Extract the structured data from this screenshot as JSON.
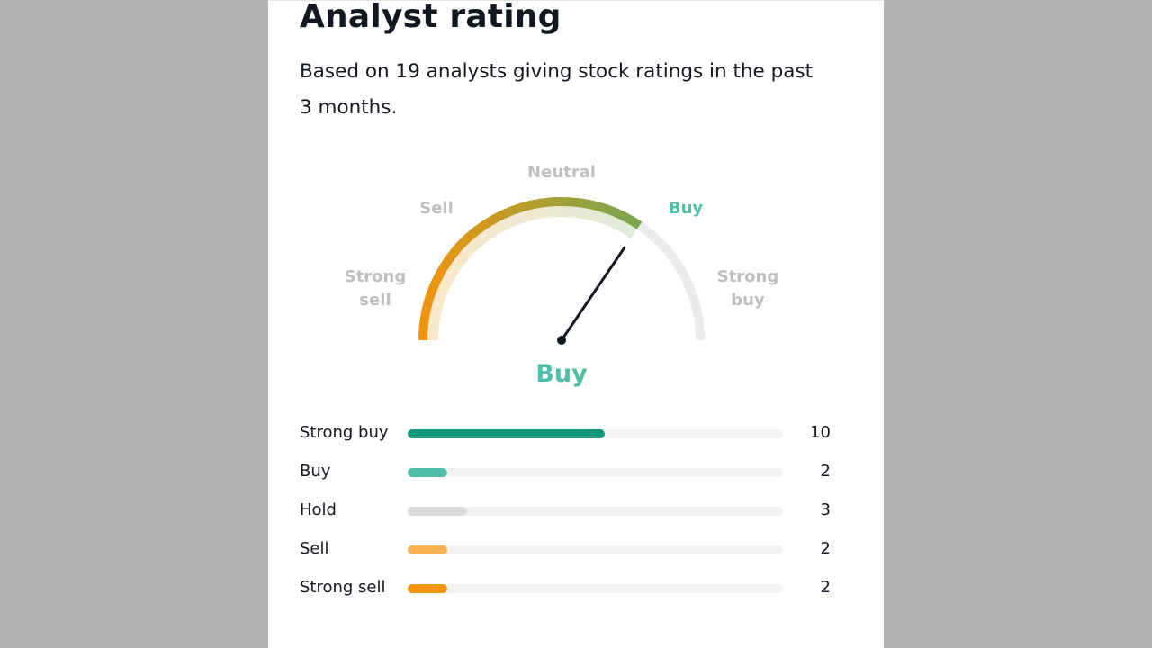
{
  "widget": {
    "title": "Analyst rating",
    "subtitle": "Based on 19 analysts giving stock ratings in the past 3 months."
  },
  "gauge": {
    "labels": {
      "strong_sell_line1": "Strong",
      "strong_sell_line2": "sell",
      "sell": "Sell",
      "neutral": "Neutral",
      "buy": "Buy",
      "strong_buy_line1": "Strong",
      "strong_buy_line2": "buy"
    },
    "result": "Buy",
    "needle_fraction": 0.69,
    "filled_fraction": 0.69,
    "colors": {
      "start": "#f2930c",
      "end": "#71a853",
      "track": "#ebebeb",
      "active_label": "#4fbfa8"
    }
  },
  "ratings": {
    "max": 19,
    "items": [
      {
        "label": "Strong buy",
        "count": 10,
        "color": "#12977f"
      },
      {
        "label": "Buy",
        "count": 2,
        "color": "#4fbfa8"
      },
      {
        "label": "Hold",
        "count": 3,
        "color": "#dcdcdc"
      },
      {
        "label": "Sell",
        "count": 2,
        "color": "#f8b350"
      },
      {
        "label": "Strong sell",
        "count": 2,
        "color": "#f2930c"
      }
    ]
  }
}
